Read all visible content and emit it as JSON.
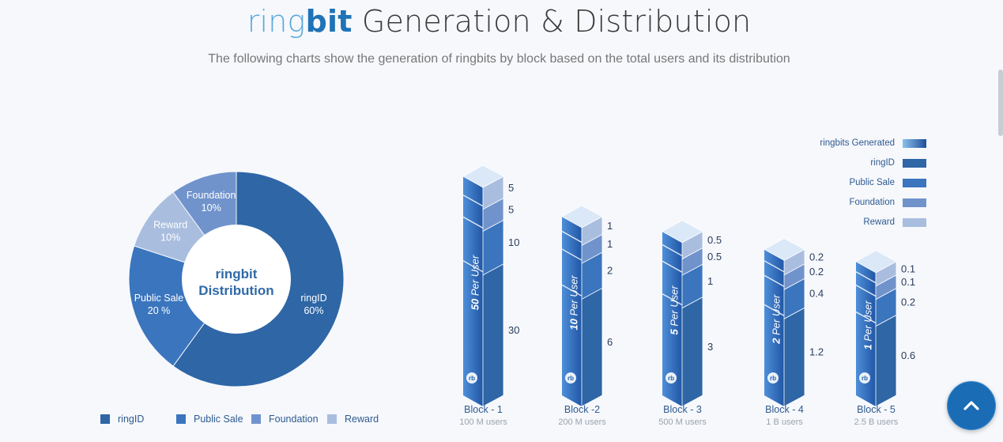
{
  "header": {
    "title_ring": "ring",
    "title_bit": "bit",
    "title_rest": " Generation & Distribution",
    "subtitle": "The following charts show the generation of ringbits by block based on the total users and its distribution"
  },
  "colors": {
    "ringID": "#2e66a6",
    "public_sale": "#3a75be",
    "foundation": "#7193cc",
    "reward": "#a9bddf",
    "accent": "#1a6cb5"
  },
  "chart_data": [
    {
      "type": "pie",
      "center_label_line1": "ringbit",
      "center_label_line2": "Distribution",
      "slices": [
        {
          "name": "ringID",
          "value": 60,
          "label_name": "ringID",
          "label_value": "60%"
        },
        {
          "name": "Public Sale",
          "value": 20,
          "label_name": "Public Sale",
          "label_value": "20 %"
        },
        {
          "name": "Reward",
          "value": 10,
          "label_name": "Reward",
          "label_value": "10%"
        },
        {
          "name": "Foundation",
          "value": 10,
          "label_name": "Foundation",
          "label_value": "10%"
        }
      ],
      "legend": [
        "ringID",
        "Public Sale",
        "Foundation",
        "Reward"
      ]
    },
    {
      "type": "bar",
      "stacked": true,
      "categories": [
        "Block - 1",
        "Block -2",
        "Block - 3",
        "Block - 4",
        "Block - 5"
      ],
      "category_sublabels": [
        "100 M users",
        "200 M users",
        "500 M users",
        "1 B users",
        "2.5 B users"
      ],
      "bar_labels": [
        "50 Per User",
        "10 Per User",
        "5 Per User",
        "2 Per User",
        "1 Per User"
      ],
      "series": [
        {
          "name": "ringID",
          "values": [
            30,
            6,
            3,
            1.2,
            0.6
          ]
        },
        {
          "name": "Public Sale",
          "values": [
            10,
            2,
            1,
            0.4,
            0.2
          ]
        },
        {
          "name": "Foundation",
          "values": [
            5,
            1,
            0.5,
            0.2,
            0.1
          ]
        },
        {
          "name": "Reward",
          "values": [
            5,
            1,
            0.5,
            0.2,
            0.1
          ]
        }
      ],
      "legend": [
        "ringbits Generated",
        "ringID",
        "Public Sale",
        "Foundation",
        "Reward"
      ],
      "legend_placement": "top-right"
    }
  ]
}
